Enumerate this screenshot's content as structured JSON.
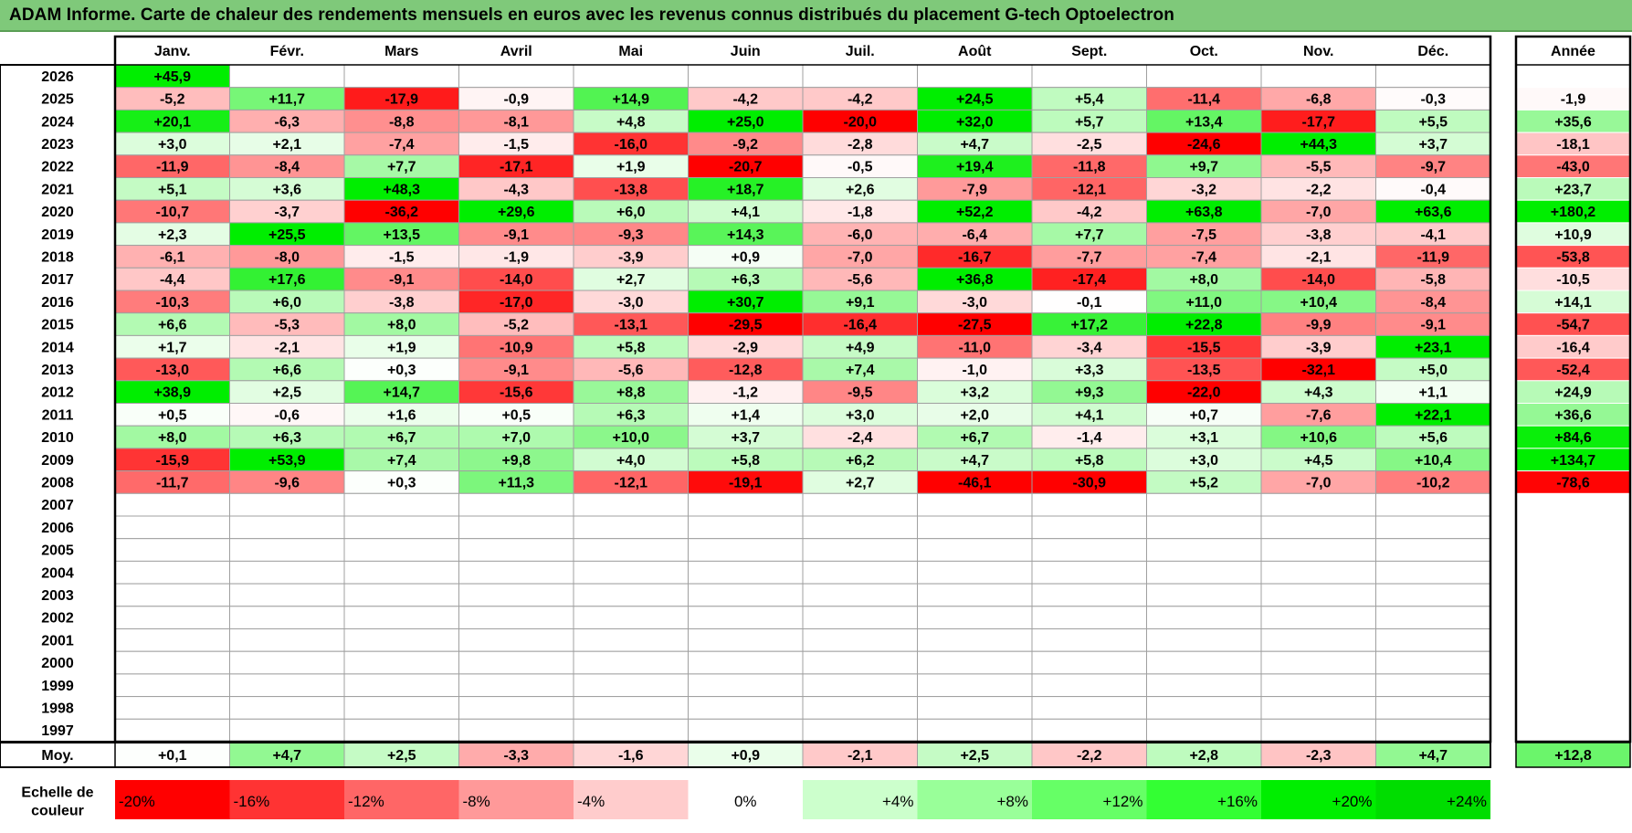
{
  "title": "ADAM Informe. Carte de chaleur des rendements mensuels en euros avec les revenus connus distribués du placement G-tech Optoelectron",
  "chart_data": {
    "type": "heatmap",
    "months": [
      "Janv.",
      "Févr.",
      "Mars",
      "Avril",
      "Mai",
      "Juin",
      "Juil.",
      "Août",
      "Sept.",
      "Oct.",
      "Nov.",
      "Déc."
    ],
    "year_header": "Année",
    "rows": [
      {
        "year": "2026",
        "values": [
          "+45,9",
          "",
          "",
          "",
          "",
          "",
          "",
          "",
          "",
          "",
          "",
          ""
        ],
        "annual": ""
      },
      {
        "year": "2025",
        "values": [
          "-5,2",
          "+11,7",
          "-17,9",
          "-0,9",
          "+14,9",
          "-4,2",
          "-4,2",
          "+24,5",
          "+5,4",
          "-11,4",
          "-6,8",
          "-0,3"
        ],
        "annual": "-1,9"
      },
      {
        "year": "2024",
        "values": [
          "+20,1",
          "-6,3",
          "-8,8",
          "-8,1",
          "+4,8",
          "+25,0",
          "-20,0",
          "+32,0",
          "+5,7",
          "+13,4",
          "-17,7",
          "+5,5"
        ],
        "annual": "+35,6"
      },
      {
        "year": "2023",
        "values": [
          "+3,0",
          "+2,1",
          "-7,4",
          "-1,5",
          "-16,0",
          "-9,2",
          "-2,8",
          "+4,7",
          "-2,5",
          "-24,6",
          "+44,3",
          "+3,7"
        ],
        "annual": "-18,1"
      },
      {
        "year": "2022",
        "values": [
          "-11,9",
          "-8,4",
          "+7,7",
          "-17,1",
          "+1,9",
          "-20,7",
          "-0,5",
          "+19,4",
          "-11,8",
          "+9,7",
          "-5,5",
          "-9,7"
        ],
        "annual": "-43,0"
      },
      {
        "year": "2021",
        "values": [
          "+5,1",
          "+3,6",
          "+48,3",
          "-4,3",
          "-13,8",
          "+18,7",
          "+2,6",
          "-7,9",
          "-12,1",
          "-3,2",
          "-2,2",
          "-0,4"
        ],
        "annual": "+23,7"
      },
      {
        "year": "2020",
        "values": [
          "-10,7",
          "-3,7",
          "-36,2",
          "+29,6",
          "+6,0",
          "+4,1",
          "-1,8",
          "+52,2",
          "-4,2",
          "+63,8",
          "-7,0",
          "+63,6"
        ],
        "annual": "+180,2"
      },
      {
        "year": "2019",
        "values": [
          "+2,3",
          "+25,5",
          "+13,5",
          "-9,1",
          "-9,3",
          "+14,3",
          "-6,0",
          "-6,4",
          "+7,7",
          "-7,5",
          "-3,8",
          "-4,1"
        ],
        "annual": "+10,9"
      },
      {
        "year": "2018",
        "values": [
          "-6,1",
          "-8,0",
          "-1,5",
          "-1,9",
          "-3,9",
          "+0,9",
          "-7,0",
          "-16,7",
          "-7,7",
          "-7,4",
          "-2,1",
          "-11,9"
        ],
        "annual": "-53,8"
      },
      {
        "year": "2017",
        "values": [
          "-4,4",
          "+17,6",
          "-9,1",
          "-14,0",
          "+2,7",
          "+6,3",
          "-5,6",
          "+36,8",
          "-17,4",
          "+8,0",
          "-14,0",
          "-5,8"
        ],
        "annual": "-10,5"
      },
      {
        "year": "2016",
        "values": [
          "-10,3",
          "+6,0",
          "-3,8",
          "-17,0",
          "-3,0",
          "+30,7",
          "+9,1",
          "-3,0",
          "-0,1",
          "+11,0",
          "+10,4",
          "-8,4"
        ],
        "annual": "+14,1"
      },
      {
        "year": "2015",
        "values": [
          "+6,6",
          "-5,3",
          "+8,0",
          "-5,2",
          "-13,1",
          "-29,5",
          "-16,4",
          "-27,5",
          "+17,2",
          "+22,8",
          "-9,9",
          "-9,1"
        ],
        "annual": "-54,7"
      },
      {
        "year": "2014",
        "values": [
          "+1,7",
          "-2,1",
          "+1,9",
          "-10,9",
          "+5,8",
          "-2,9",
          "+4,9",
          "-11,0",
          "-3,4",
          "-15,5",
          "-3,9",
          "+23,1"
        ],
        "annual": "-16,4"
      },
      {
        "year": "2013",
        "values": [
          "-13,0",
          "+6,6",
          "+0,3",
          "-9,1",
          "-5,6",
          "-12,8",
          "+7,4",
          "-1,0",
          "+3,3",
          "-13,5",
          "-32,1",
          "+5,0"
        ],
        "annual": "-52,4"
      },
      {
        "year": "2012",
        "values": [
          "+38,9",
          "+2,5",
          "+14,7",
          "-15,6",
          "+8,8",
          "-1,2",
          "-9,5",
          "+3,2",
          "+9,3",
          "-22,0",
          "+4,3",
          "+1,1"
        ],
        "annual": "+24,9"
      },
      {
        "year": "2011",
        "values": [
          "+0,5",
          "-0,6",
          "+1,6",
          "+0,5",
          "+6,3",
          "+1,4",
          "+3,0",
          "+2,0",
          "+4,1",
          "+0,7",
          "-7,6",
          "+22,1"
        ],
        "annual": "+36,6"
      },
      {
        "year": "2010",
        "values": [
          "+8,0",
          "+6,3",
          "+6,7",
          "+7,0",
          "+10,0",
          "+3,7",
          "-2,4",
          "+6,7",
          "-1,4",
          "+3,1",
          "+10,6",
          "+5,6"
        ],
        "annual": "+84,6"
      },
      {
        "year": "2009",
        "values": [
          "-15,9",
          "+53,9",
          "+7,4",
          "+9,8",
          "+4,0",
          "+5,8",
          "+6,2",
          "+4,7",
          "+5,8",
          "+3,0",
          "+4,5",
          "+10,4"
        ],
        "annual": "+134,7"
      },
      {
        "year": "2008",
        "values": [
          "-11,7",
          "-9,6",
          "+0,3",
          "+11,3",
          "-12,1",
          "-19,1",
          "+2,7",
          "-46,1",
          "-30,9",
          "+5,2",
          "-7,0",
          "-10,2"
        ],
        "annual": "-78,6"
      },
      {
        "year": "2007",
        "values": [
          "",
          "",
          "",
          "",
          "",
          "",
          "",
          "",
          "",
          "",
          "",
          ""
        ],
        "annual": ""
      },
      {
        "year": "2006",
        "values": [
          "",
          "",
          "",
          "",
          "",
          "",
          "",
          "",
          "",
          "",
          "",
          ""
        ],
        "annual": ""
      },
      {
        "year": "2005",
        "values": [
          "",
          "",
          "",
          "",
          "",
          "",
          "",
          "",
          "",
          "",
          "",
          ""
        ],
        "annual": ""
      },
      {
        "year": "2004",
        "values": [
          "",
          "",
          "",
          "",
          "",
          "",
          "",
          "",
          "",
          "",
          "",
          ""
        ],
        "annual": ""
      },
      {
        "year": "2003",
        "values": [
          "",
          "",
          "",
          "",
          "",
          "",
          "",
          "",
          "",
          "",
          "",
          ""
        ],
        "annual": ""
      },
      {
        "year": "2002",
        "values": [
          "",
          "",
          "",
          "",
          "",
          "",
          "",
          "",
          "",
          "",
          "",
          ""
        ],
        "annual": ""
      },
      {
        "year": "2001",
        "values": [
          "",
          "",
          "",
          "",
          "",
          "",
          "",
          "",
          "",
          "",
          "",
          ""
        ],
        "annual": ""
      },
      {
        "year": "2000",
        "values": [
          "",
          "",
          "",
          "",
          "",
          "",
          "",
          "",
          "",
          "",
          "",
          ""
        ],
        "annual": ""
      },
      {
        "year": "1999",
        "values": [
          "",
          "",
          "",
          "",
          "",
          "",
          "",
          "",
          "",
          "",
          "",
          ""
        ],
        "annual": ""
      },
      {
        "year": "1998",
        "values": [
          "",
          "",
          "",
          "",
          "",
          "",
          "",
          "",
          "",
          "",
          "",
          ""
        ],
        "annual": ""
      },
      {
        "year": "1997",
        "values": [
          "",
          "",
          "",
          "",
          "",
          "",
          "",
          "",
          "",
          "",
          "",
          ""
        ],
        "annual": ""
      }
    ],
    "average": {
      "label": "Moy.",
      "values": [
        "+0,1",
        "+4,7",
        "+2,5",
        "-3,3",
        "-1,6",
        "+0,9",
        "-2,1",
        "+2,5",
        "-2,2",
        "+2,8",
        "-2,3",
        "+4,7"
      ],
      "annual": "+12,8"
    },
    "scale": {
      "label": "Echelle de couleur",
      "items": [
        {
          "label": "-20%",
          "color": "#ff0000"
        },
        {
          "label": "-16%",
          "color": "#ff3333"
        },
        {
          "label": "-12%",
          "color": "#ff6666"
        },
        {
          "label": "-8%",
          "color": "#ff9999"
        },
        {
          "label": "-4%",
          "color": "#ffcccc"
        },
        {
          "label": "0%",
          "color": "#ffffff"
        },
        {
          "label": "+4%",
          "color": "#ccffcc"
        },
        {
          "label": "+8%",
          "color": "#99ff99"
        },
        {
          "label": "+12%",
          "color": "#66ff66"
        },
        {
          "label": "+16%",
          "color": "#33ff33"
        },
        {
          "label": "+20%",
          "color": "#00ee00"
        },
        {
          "label": "+24%",
          "color": "#00dd00"
        }
      ]
    }
  },
  "colors": {
    "title_bar": "#7fc97a",
    "grid": "#a0a0a0",
    "border": "#000000"
  }
}
